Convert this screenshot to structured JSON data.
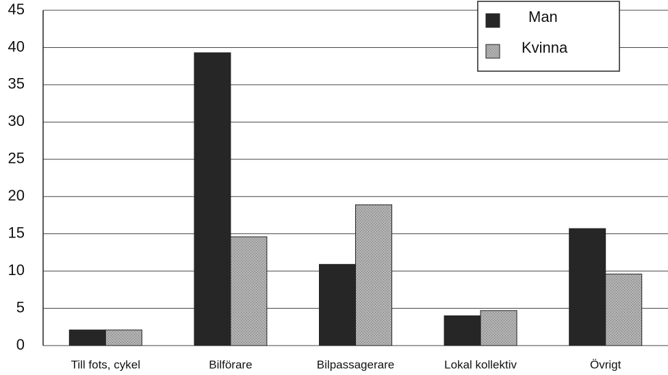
{
  "chart_data": {
    "type": "bar",
    "categories": [
      "Till fots, cykel",
      "Bilförare",
      "Bilpassagerare",
      "Lokal kollektiv",
      "Övrigt"
    ],
    "series": [
      {
        "name": "Man",
        "color": "#222222",
        "values": [
          2.1,
          39.3,
          10.9,
          4.0,
          15.7
        ]
      },
      {
        "name": "Kvinna",
        "color": "#a8a8a8",
        "values": [
          2.1,
          14.6,
          18.9,
          4.7,
          9.6
        ]
      }
    ],
    "ylim": [
      0,
      45
    ],
    "yticks": [
      0,
      5,
      10,
      15,
      20,
      25,
      30,
      35,
      40,
      45
    ],
    "grid": true,
    "legend": "top-right"
  }
}
